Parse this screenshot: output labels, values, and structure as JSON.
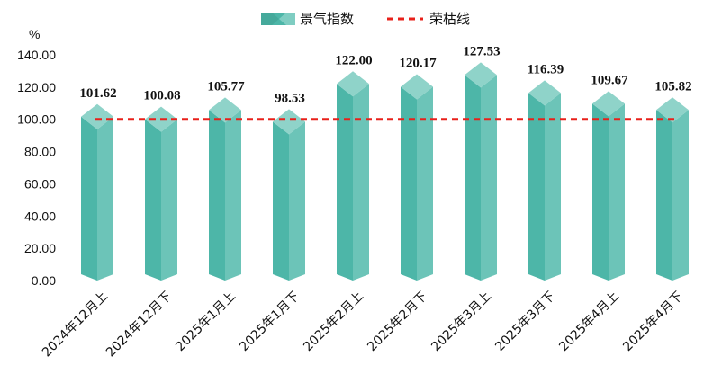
{
  "chart_data": {
    "type": "bar",
    "unit": "%",
    "categories": [
      "2024年12月上",
      "2024年12月下",
      "2025年1月上",
      "2025年1月下",
      "2025年2月上",
      "2025年2月下",
      "2025年3月上",
      "2025年3月下",
      "2025年4月上",
      "2025年4月下"
    ],
    "series": [
      {
        "name": "景气指数",
        "values": [
          101.62,
          100.08,
          105.77,
          98.53,
          122.0,
          120.17,
          127.53,
          116.39,
          109.67,
          105.82
        ],
        "color": "#4db6a8"
      }
    ],
    "reference_line": {
      "name": "荣枯线",
      "value": 100,
      "color": "#e8201a",
      "style": "dashed"
    },
    "y_ticks": [
      "0.00",
      "20.00",
      "40.00",
      "60.00",
      "80.00",
      "100.00",
      "120.00",
      "140.00"
    ],
    "ylim": [
      0,
      140
    ],
    "grid": false,
    "legend_position": "top-center"
  }
}
